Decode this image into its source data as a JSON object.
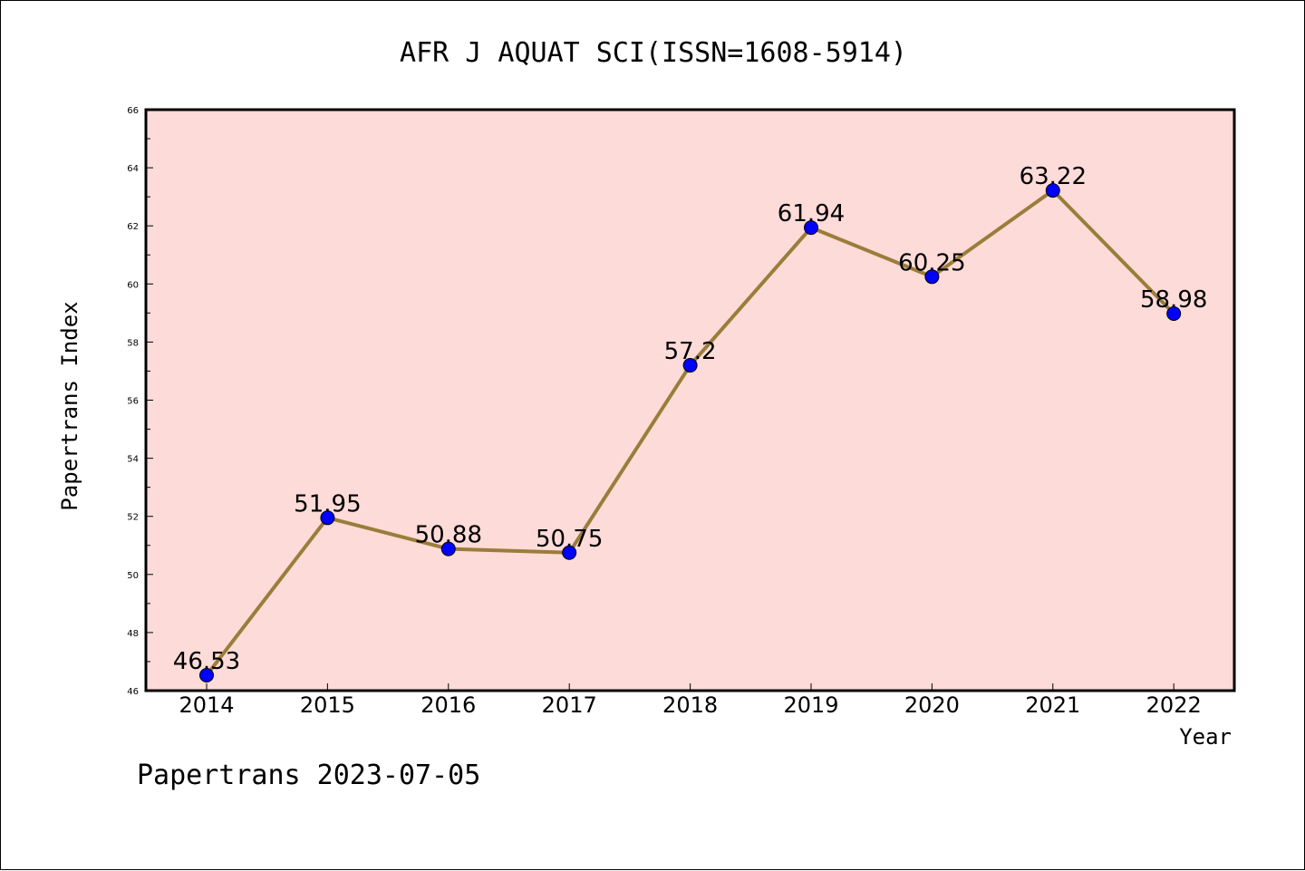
{
  "chart_data": {
    "type": "line",
    "title": "AFR J AQUAT SCI(ISSN=1608-5914)",
    "xlabel": "Year",
    "ylabel": "Papertrans Index",
    "footer": "Papertrans 2023-07-05",
    "categories": [
      "2014",
      "2015",
      "2016",
      "2017",
      "2018",
      "2019",
      "2020",
      "2021",
      "2022"
    ],
    "series": [
      {
        "values": [
          46.53,
          51.95,
          50.88,
          50.75,
          57.2,
          61.94,
          60.25,
          63.22,
          58.98
        ],
        "labels": [
          "46.53",
          "51.95",
          "50.88",
          "50.75",
          "57.2",
          "61.94",
          "60.25",
          "63.22",
          "58.98"
        ],
        "line_color": "#9a7d3a",
        "marker_color": "#0000ff"
      }
    ],
    "ylim": [
      46,
      66
    ],
    "yticks": [
      "46",
      "48",
      "50",
      "52",
      "54",
      "56",
      "58",
      "60",
      "62",
      "64",
      "66"
    ],
    "plot_background": "#fddbd8",
    "grid": false,
    "legend": "none"
  }
}
